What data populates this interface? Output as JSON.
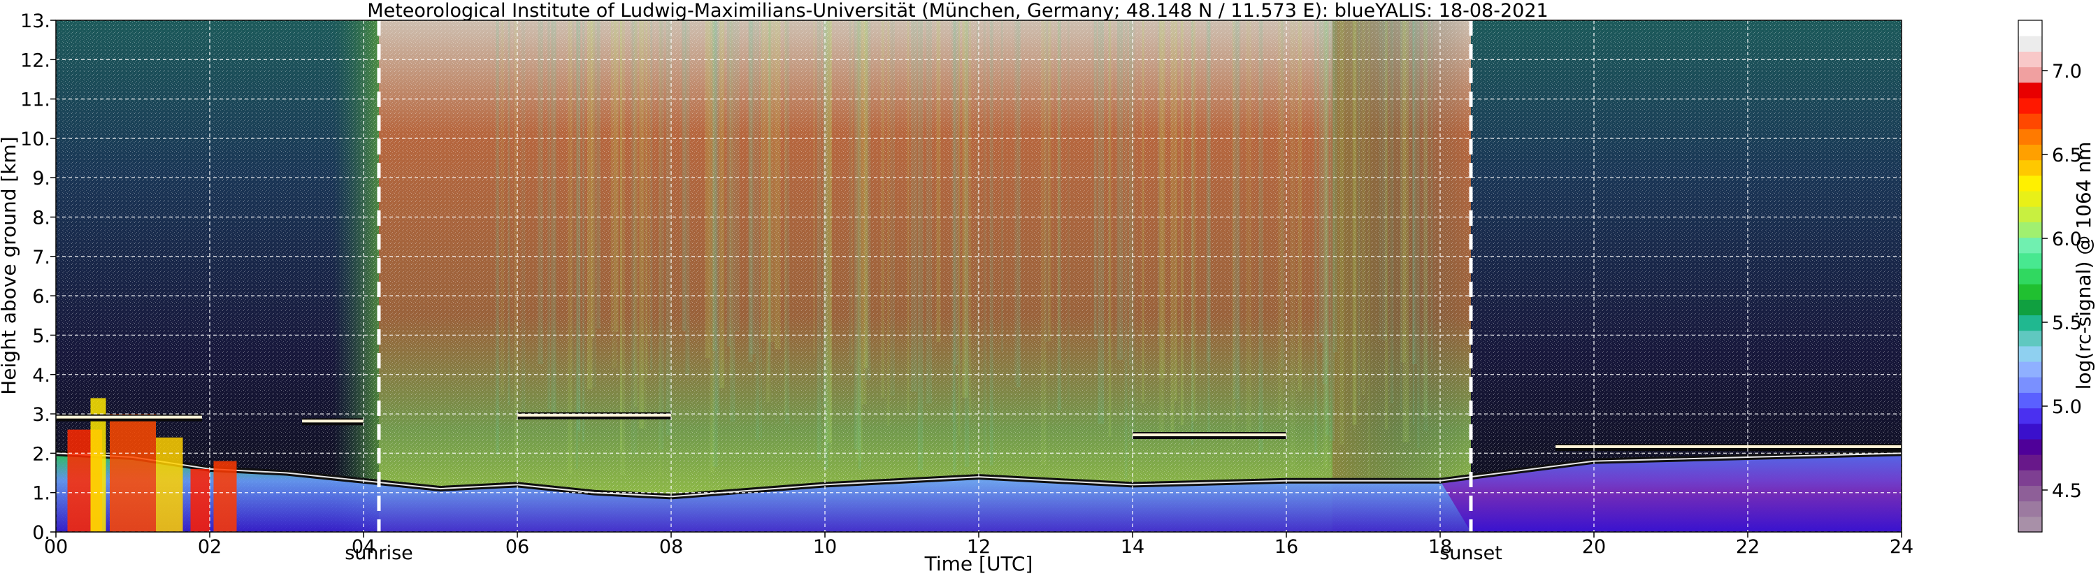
{
  "chart_data": {
    "type": "heatmap",
    "title": "Meteorological Institute of Ludwig-Maximilians-Universität (München, Germany; 48.148 N / 11.573 E):    blueYALIS: 18-08-2021",
    "xlabel": "Time [UTC]",
    "ylabel": "Height above ground [km]",
    "xlim": [
      0,
      24
    ],
    "ylim": [
      0,
      13
    ],
    "x_ticks": [
      {
        "value": 0,
        "label": "00"
      },
      {
        "value": 2,
        "label": "02"
      },
      {
        "value": 4,
        "label": "04"
      },
      {
        "value": 6,
        "label": "06"
      },
      {
        "value": 8,
        "label": "08"
      },
      {
        "value": 10,
        "label": "10"
      },
      {
        "value": 12,
        "label": "12"
      },
      {
        "value": 14,
        "label": "14"
      },
      {
        "value": 16,
        "label": "16"
      },
      {
        "value": 18,
        "label": "18"
      },
      {
        "value": 20,
        "label": "20"
      },
      {
        "value": 22,
        "label": "22"
      },
      {
        "value": 24,
        "label": "24"
      }
    ],
    "y_ticks": [
      {
        "value": 0,
        "label": "0."
      },
      {
        "value": 1,
        "label": "1."
      },
      {
        "value": 2,
        "label": "2."
      },
      {
        "value": 3,
        "label": "3."
      },
      {
        "value": 4,
        "label": "4."
      },
      {
        "value": 5,
        "label": "5."
      },
      {
        "value": 6,
        "label": "6."
      },
      {
        "value": 7,
        "label": "7."
      },
      {
        "value": 8,
        "label": "8."
      },
      {
        "value": 9,
        "label": "9."
      },
      {
        "value": 10,
        "label": "10."
      },
      {
        "value": 11,
        "label": "11."
      },
      {
        "value": 12,
        "label": "12."
      },
      {
        "value": 13,
        "label": "13."
      }
    ],
    "grid": true,
    "annotations": [
      {
        "time": 4.2,
        "label": "sunrise"
      },
      {
        "time": 18.4,
        "label": "sunset"
      }
    ],
    "colorbar": {
      "label": "log(rc-signal) @ 1064 nm",
      "range": [
        4.25,
        7.3
      ],
      "ticks": [
        {
          "value": 4.5,
          "label": "4.5"
        },
        {
          "value": 5.0,
          "label": "5.0"
        },
        {
          "value": 5.5,
          "label": "5.5"
        },
        {
          "value": 6.0,
          "label": "6.0"
        },
        {
          "value": 6.5,
          "label": "6.5"
        },
        {
          "value": 7.0,
          "label": "7.0"
        }
      ],
      "colors": [
        "#a890a8",
        "#9c7aa0",
        "#8e5f98",
        "#7e3f92",
        "#68188a",
        "#4f0099",
        "#3a10cc",
        "#4a30f0",
        "#5a60ff",
        "#7a90ff",
        "#8fb0ff",
        "#8fd0f0",
        "#60c8c0",
        "#20b890",
        "#10a040",
        "#20c030",
        "#30d860",
        "#48e890",
        "#70f0b0",
        "#a0f070",
        "#c8f040",
        "#e8f018",
        "#fff000",
        "#ffc800",
        "#ffa000",
        "#ff7a00",
        "#ff4800",
        "#ff1800",
        "#e80000",
        "#f0a0a0",
        "#f8c8c8",
        "#ececec",
        "#ffffff"
      ]
    },
    "features": {
      "boundary_layer_top_km": [
        {
          "time": 0.0,
          "value": 2.0
        },
        {
          "time": 1.0,
          "value": 1.9
        },
        {
          "time": 2.0,
          "value": 1.6
        },
        {
          "time": 3.0,
          "value": 1.5
        },
        {
          "time": 4.0,
          "value": 1.3
        },
        {
          "time": 5.0,
          "value": 1.1
        },
        {
          "time": 6.0,
          "value": 1.2
        },
        {
          "time": 7.0,
          "value": 1.0
        },
        {
          "time": 8.0,
          "value": 0.9
        },
        {
          "time": 10.0,
          "value": 1.2
        },
        {
          "time": 12.0,
          "value": 1.4
        },
        {
          "time": 14.0,
          "value": 1.2
        },
        {
          "time": 16.0,
          "value": 1.3
        },
        {
          "time": 18.0,
          "value": 1.3
        },
        {
          "time": 20.0,
          "value": 1.8
        },
        {
          "time": 22.0,
          "value": 1.9
        },
        {
          "time": 24.0,
          "value": 2.0
        }
      ],
      "elevated_layers_km": [
        {
          "start": 0.0,
          "end": 1.9,
          "height": 2.9
        },
        {
          "start": 3.2,
          "end": 4.0,
          "height": 2.8
        },
        {
          "start": 6.0,
          "end": 8.0,
          "height": 2.95
        },
        {
          "start": 14.0,
          "end": 16.0,
          "height": 2.45
        },
        {
          "start": 19.5,
          "end": 24.0,
          "height": 2.15
        }
      ]
    }
  }
}
